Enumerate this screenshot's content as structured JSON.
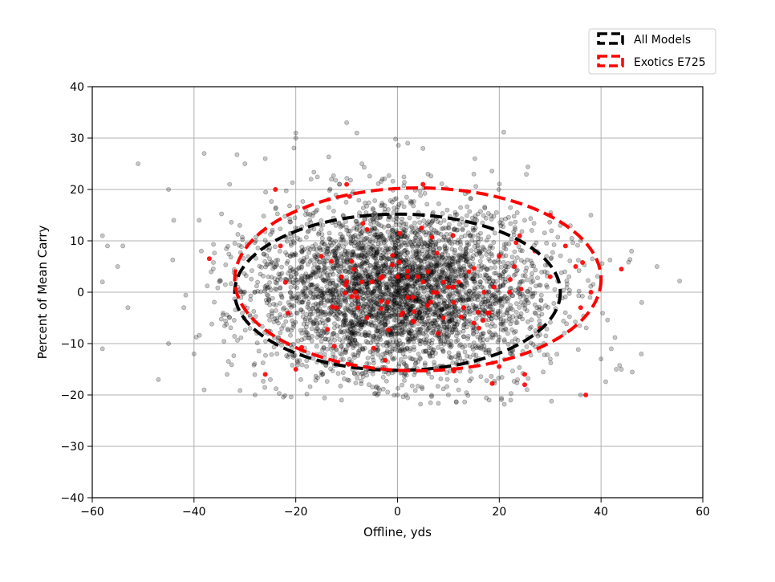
{
  "chart_data": {
    "type": "scatter",
    "xlabel": "Offline, yds",
    "ylabel": "Percent of Mean Carry",
    "xlim": [
      -60,
      60
    ],
    "ylim": [
      -40,
      40
    ],
    "xticks": [
      -60,
      -40,
      -20,
      0,
      20,
      40,
      60
    ],
    "yticks": [
      -40,
      -30,
      -20,
      -10,
      0,
      10,
      20,
      30,
      40
    ],
    "xtick_labels": [
      "−60",
      "−40",
      "−20",
      "0",
      "20",
      "40",
      "60"
    ],
    "ytick_labels": [
      "−40",
      "−30",
      "−20",
      "−10",
      "0",
      "10",
      "20",
      "30",
      "40"
    ],
    "grid": true,
    "legend_position": "upper-right-outside",
    "series": [
      {
        "name": "All Models",
        "color": "#000000",
        "alpha": 0.25,
        "approx_count": 4000,
        "distribution": {
          "center": [
            0,
            0
          ],
          "sd_x": 14,
          "sd_y": 8.5
        },
        "ellipse": {
          "center": [
            0,
            0
          ],
          "half_width": 32,
          "half_height": 15.2,
          "color": "#000000",
          "style": "dashed"
        },
        "sample_points": [
          [
            -51,
            25
          ],
          [
            -58,
            11
          ],
          [
            -57,
            9
          ],
          [
            -58,
            2
          ],
          [
            -58,
            -11
          ],
          [
            -54,
            9
          ],
          [
            -53,
            -3
          ],
          [
            -55,
            5
          ],
          [
            -47,
            -17
          ],
          [
            -45,
            20
          ],
          [
            -45,
            -10
          ],
          [
            -44,
            14
          ],
          [
            -42,
            -3
          ],
          [
            -40,
            -12
          ],
          [
            -39,
            14
          ],
          [
            -38,
            27
          ],
          [
            -38,
            -19
          ],
          [
            -33,
            21
          ],
          [
            -30,
            25
          ],
          [
            -28,
            -20
          ],
          [
            -26,
            26
          ],
          [
            -20,
            31
          ],
          [
            -20,
            30
          ],
          [
            -10,
            33
          ],
          [
            -8,
            31
          ],
          [
            -7,
            25
          ],
          [
            2,
            29
          ],
          [
            5,
            28
          ],
          [
            15,
            23
          ],
          [
            -11,
            -21
          ],
          [
            10,
            -20
          ],
          [
            18,
            -21
          ],
          [
            32,
            13
          ],
          [
            36,
            10
          ],
          [
            42,
            -11
          ],
          [
            43,
            -15
          ],
          [
            44,
            -15
          ],
          [
            46,
            8
          ],
          [
            48,
            -2
          ],
          [
            51,
            5
          ],
          [
            40,
            -13
          ],
          [
            -19,
            -17
          ],
          [
            -17,
            22
          ],
          [
            38,
            15
          ],
          [
            6,
            23
          ],
          [
            -3,
            22
          ],
          [
            -13,
            22
          ],
          [
            0,
            -20
          ],
          [
            -4,
            -20
          ],
          [
            12,
            -19
          ],
          [
            25,
            14
          ],
          [
            -25,
            -17
          ],
          [
            36,
            -20
          ],
          [
            30,
            -13
          ],
          [
            -31,
            13
          ]
        ]
      },
      {
        "name": "Exotics E725",
        "color": "#ff0000",
        "approx_count": 110,
        "distribution": {
          "center": [
            3,
            0
          ],
          "sd_x": 13,
          "sd_y": 9
        },
        "ellipse": {
          "center": [
            4,
            2.5
          ],
          "half_width": 36,
          "half_height": 17.8,
          "color": "#ff0000",
          "style": "dashed"
        },
        "sample_points": [
          [
            -24,
            20
          ],
          [
            -10,
            21
          ],
          [
            5,
            21
          ],
          [
            37,
            -20
          ],
          [
            44,
            4.5
          ],
          [
            -26,
            -16
          ],
          [
            -20,
            -15
          ],
          [
            25,
            -16
          ],
          [
            25,
            -18
          ],
          [
            -23,
            9
          ],
          [
            -9,
            6
          ],
          [
            -10,
            2
          ],
          [
            -5,
            2
          ],
          [
            -3,
            3
          ],
          [
            0,
            3
          ],
          [
            2,
            3
          ],
          [
            4,
            3
          ],
          [
            5,
            2
          ],
          [
            8,
            -8
          ],
          [
            9,
            2
          ],
          [
            10,
            1
          ],
          [
            11,
            1
          ],
          [
            12,
            2
          ],
          [
            15,
            -6
          ],
          [
            18,
            -4
          ],
          [
            20,
            7
          ],
          [
            22,
            0
          ],
          [
            24,
            11
          ],
          [
            27,
            8
          ],
          [
            28,
            -7
          ],
          [
            30,
            3
          ],
          [
            33,
            9
          ],
          [
            35,
            5
          ],
          [
            36,
            -3
          ],
          [
            38,
            0
          ],
          [
            -15,
            7
          ],
          [
            -13,
            6
          ],
          [
            -12,
            -3
          ],
          [
            -6,
            -5
          ],
          [
            -2,
            -2
          ],
          [
            1,
            -4
          ],
          [
            3,
            -1
          ],
          [
            6,
            4
          ],
          [
            13,
            -3
          ],
          [
            17,
            0
          ],
          [
            19,
            1
          ],
          [
            -7,
            2
          ],
          [
            -8,
            -1
          ],
          [
            14,
            4
          ],
          [
            16,
            -7
          ],
          [
            7,
            0
          ],
          [
            9,
            -5
          ],
          [
            11,
            -2
          ],
          [
            -11,
            3
          ],
          [
            23,
            5
          ],
          [
            30,
            15
          ]
        ]
      }
    ]
  },
  "legend": {
    "items": [
      {
        "label": "All Models",
        "color": "#000000"
      },
      {
        "label": "Exotics E725",
        "color": "#ff0000"
      }
    ]
  }
}
